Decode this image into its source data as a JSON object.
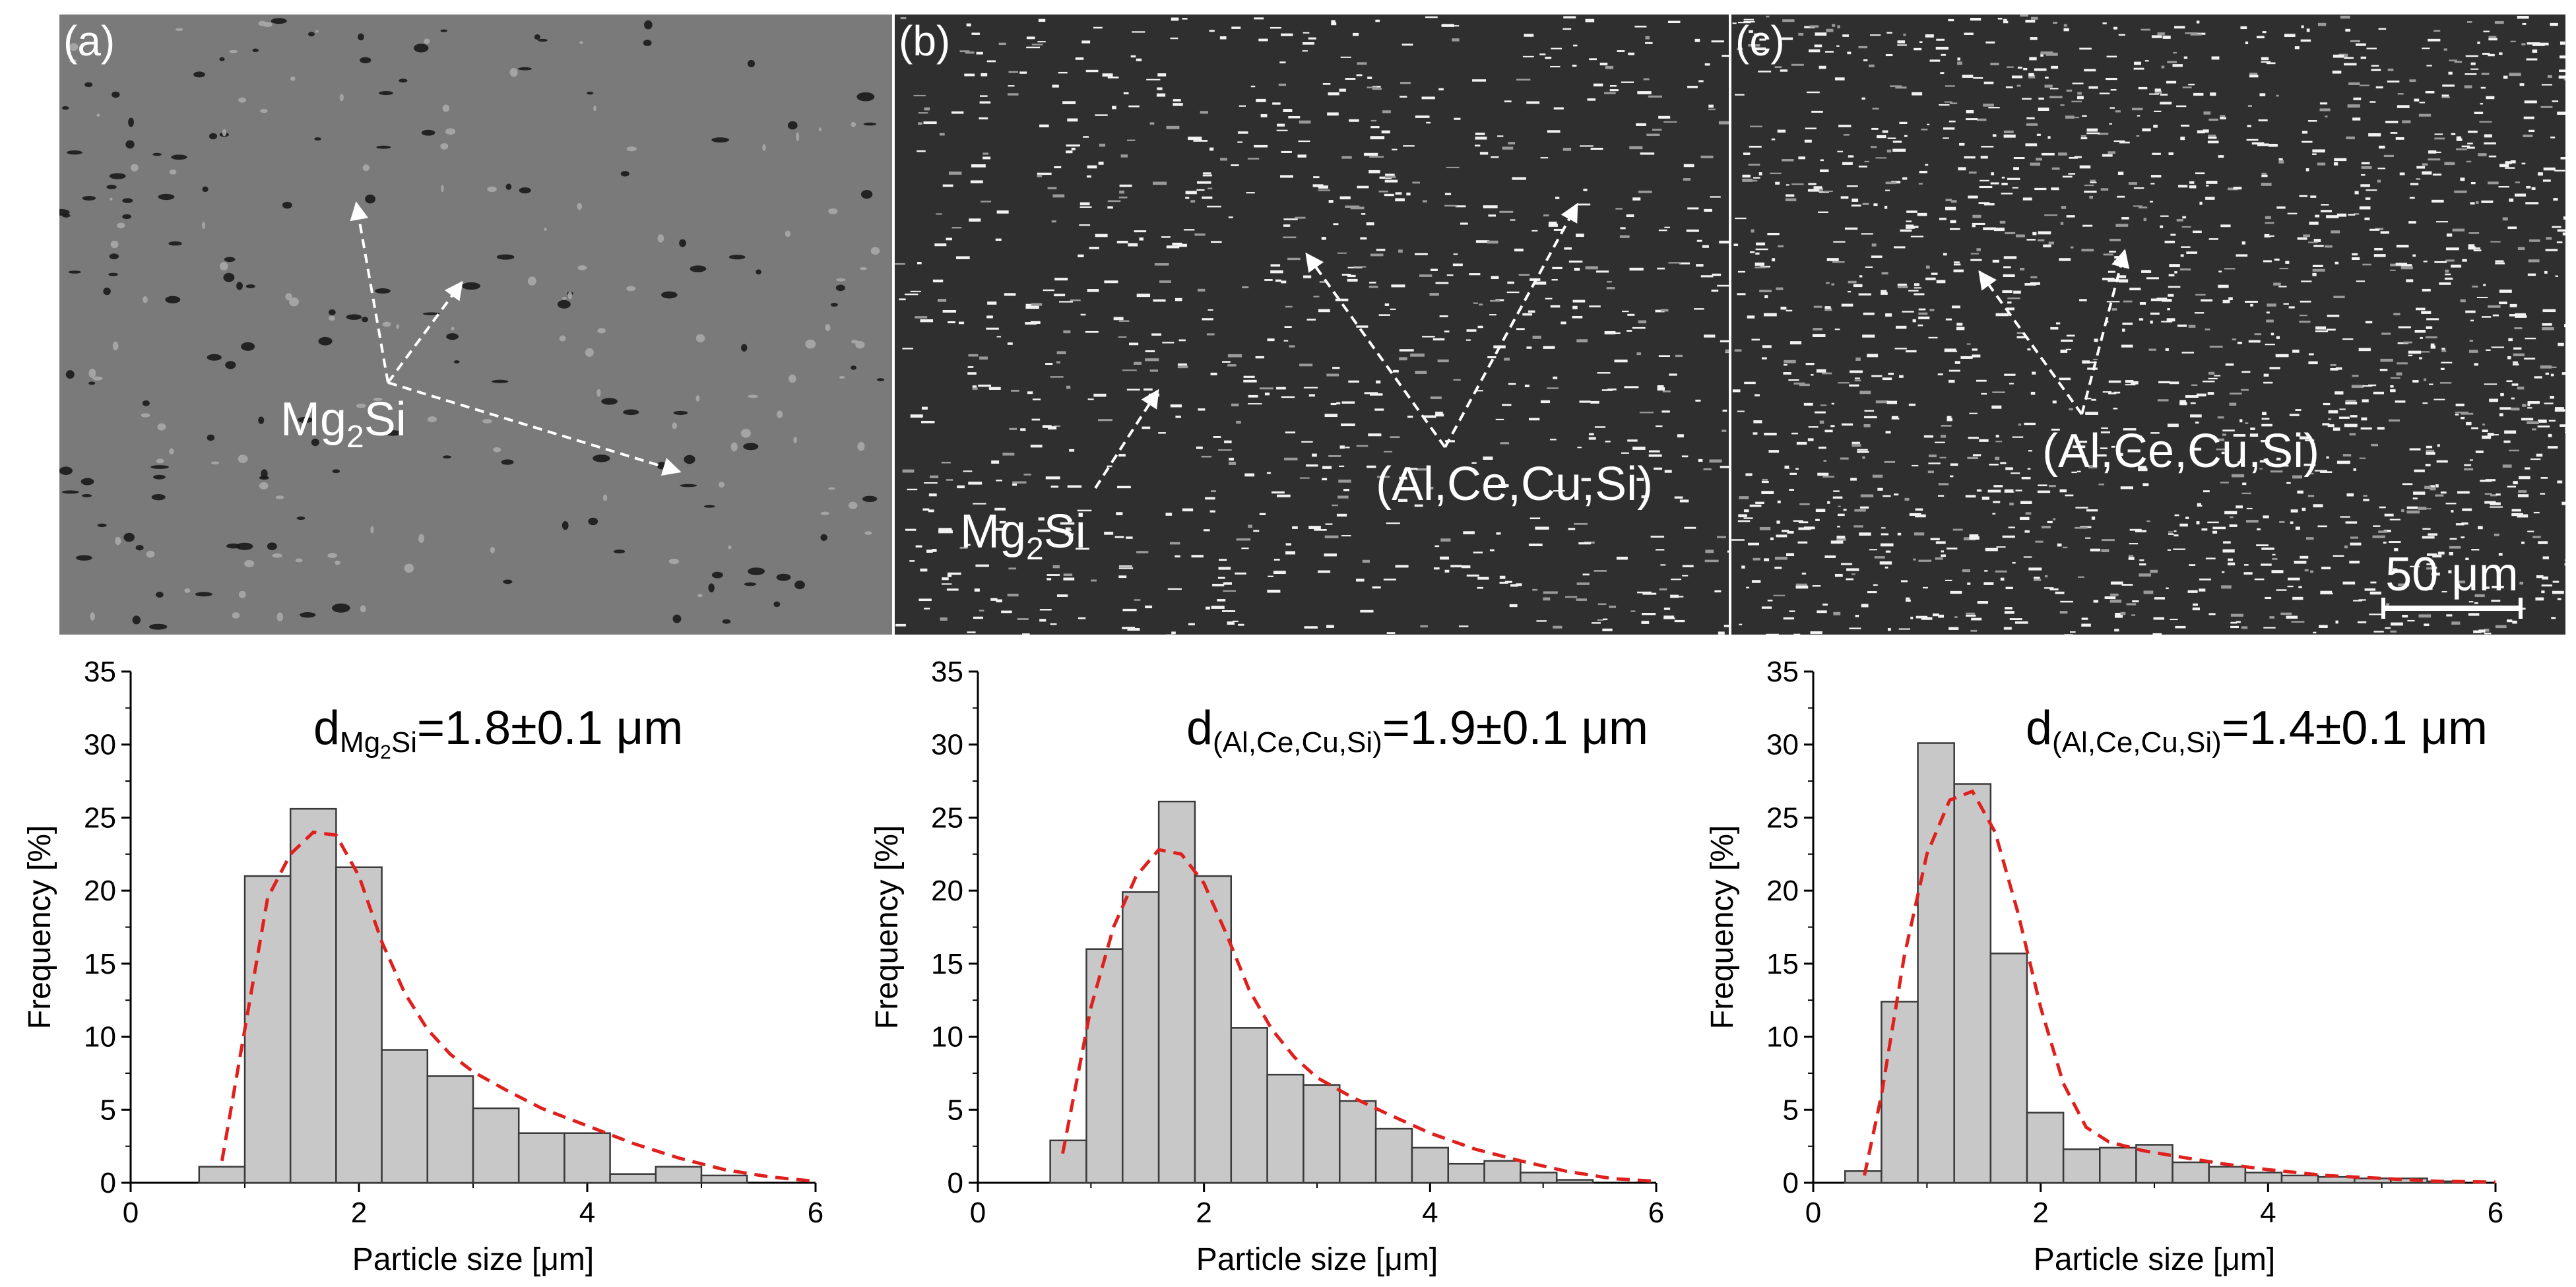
{
  "panels": [
    {
      "tag": "(a)",
      "annotations": [
        {
          "base": "Mg",
          "sub": "2",
          "tail": "Si"
        }
      ],
      "scale_bar": null
    },
    {
      "tag": "(b)",
      "annotations": [
        {
          "base": "Mg",
          "sub": "2",
          "tail": "Si"
        },
        {
          "base": "(Al,Ce,Cu,Si)",
          "sub": "",
          "tail": ""
        }
      ],
      "scale_bar": null
    },
    {
      "tag": "(c)",
      "annotations": [
        {
          "base": "(Al,Ce,Cu,Si)",
          "sub": "",
          "tail": ""
        }
      ],
      "scale_bar": {
        "label": "50 μm",
        "length_um": 50
      }
    }
  ],
  "chart_data": [
    {
      "type": "bar",
      "xlabel": "Particle size [μm]",
      "ylabel": "Frequency [%]",
      "xlim": [
        0,
        6
      ],
      "ylim": [
        0,
        35
      ],
      "xticks": [
        "0",
        "2",
        "4",
        "6"
      ],
      "yticks": [
        "0",
        "5",
        "10",
        "15",
        "20",
        "25",
        "30",
        "35"
      ],
      "bin_width": 0.4,
      "bin_centers": [
        0.8,
        1.2,
        1.6,
        2.0,
        2.4,
        2.8,
        3.2,
        3.6,
        4.0,
        4.4,
        4.8,
        5.2
      ],
      "values": [
        1.1,
        21.0,
        25.6,
        21.6,
        9.1,
        7.3,
        5.1,
        3.4,
        3.4,
        0.6,
        1.1,
        0.5
      ],
      "fit": {
        "x": [
          0.8,
          1.0,
          1.2,
          1.4,
          1.6,
          1.8,
          2.0,
          2.2,
          2.4,
          2.6,
          2.8,
          3.0,
          3.3,
          3.6,
          4.0,
          4.4,
          4.8,
          5.2,
          5.6,
          6.0
        ],
        "y": [
          1.5,
          10.5,
          19.5,
          22.5,
          24.0,
          23.8,
          21.0,
          16.5,
          13.0,
          10.5,
          8.8,
          7.6,
          6.3,
          5.1,
          3.9,
          2.7,
          1.7,
          0.9,
          0.4,
          0.1
        ]
      },
      "annotation": {
        "base": "d",
        "sub": "Mg",
        "subsub": "2",
        "subtail": "Si",
        "value": "=1.8±0.1 μm"
      }
    },
    {
      "type": "bar",
      "xlabel": "Particle size [μm]",
      "ylabel": "Frequency [%]",
      "xlim": [
        0,
        6
      ],
      "ylim": [
        0,
        35
      ],
      "xticks": [
        "0",
        "2",
        "4",
        "6"
      ],
      "yticks": [
        "0",
        "5",
        "10",
        "15",
        "20",
        "25",
        "30",
        "35"
      ],
      "bin_width": 0.32,
      "bin_centers": [
        0.8,
        1.12,
        1.44,
        1.76,
        2.08,
        2.4,
        2.72,
        3.04,
        3.36,
        3.68,
        4.0,
        4.32,
        4.64,
        4.96,
        5.28
      ],
      "values": [
        2.9,
        16.0,
        19.9,
        26.1,
        21.0,
        10.6,
        7.4,
        6.7,
        5.6,
        3.7,
        2.4,
        1.3,
        1.5,
        0.7,
        0.2
      ],
      "fit": {
        "x": [
          0.75,
          1.0,
          1.2,
          1.4,
          1.6,
          1.8,
          2.0,
          2.2,
          2.4,
          2.6,
          2.8,
          3.0,
          3.3,
          3.6,
          4.0,
          4.4,
          4.8,
          5.2,
          5.6,
          6.0
        ],
        "y": [
          2.0,
          12.0,
          17.5,
          21.0,
          22.8,
          22.5,
          20.5,
          17.0,
          13.2,
          10.5,
          8.6,
          7.2,
          5.9,
          4.8,
          3.4,
          2.3,
          1.5,
          0.8,
          0.3,
          0.1
        ]
      },
      "annotation": {
        "base": "d",
        "sub": "(Al,Ce,Cu,Si)",
        "subsub": "",
        "subtail": "",
        "value": "=1.9±0.1 μm"
      }
    },
    {
      "type": "bar",
      "xlabel": "Particle size [μm]",
      "ylabel": "Frequency [%]",
      "xlim": [
        0,
        6
      ],
      "ylim": [
        0,
        35
      ],
      "xticks": [
        "0",
        "2",
        "4",
        "6"
      ],
      "yticks": [
        "0",
        "5",
        "10",
        "15",
        "20",
        "25",
        "30",
        "35"
      ],
      "bin_width": 0.32,
      "bin_centers": [
        0.44,
        0.76,
        1.08,
        1.4,
        1.72,
        2.04,
        2.36,
        2.68,
        3.0,
        3.32,
        3.64,
        3.96,
        4.28,
        4.6,
        4.92,
        5.24,
        5.56
      ],
      "values": [
        0.8,
        12.4,
        30.1,
        27.3,
        15.7,
        4.8,
        2.3,
        2.4,
        2.6,
        1.4,
        1.1,
        0.7,
        0.5,
        0.4,
        0.3,
        0.3,
        0.1
      ],
      "fit": {
        "x": [
          0.45,
          0.6,
          0.8,
          1.0,
          1.2,
          1.4,
          1.6,
          1.8,
          2.0,
          2.2,
          2.4,
          2.6,
          2.9,
          3.2,
          3.6,
          4.0,
          4.5,
          5.0,
          5.5,
          6.0
        ],
        "y": [
          0.5,
          6.0,
          15.5,
          22.5,
          26.2,
          26.8,
          24.0,
          18.5,
          12.0,
          6.8,
          3.8,
          2.8,
          2.2,
          1.8,
          1.3,
          0.9,
          0.5,
          0.3,
          0.1,
          0.05
        ]
      },
      "annotation": {
        "base": "d",
        "sub": "(Al,Ce,Cu,Si)",
        "subsub": "",
        "subtail": "",
        "value": "=1.4±0.1 μm"
      }
    }
  ],
  "colors": {
    "bar_fill": "#c8c8c8",
    "bar_stroke": "#3a3a3a",
    "fit_line": "#e0201c",
    "micrograph_a": "#7a7a7a",
    "micrograph_bc": "#2f2f2f",
    "arrow": "#ffffff"
  }
}
